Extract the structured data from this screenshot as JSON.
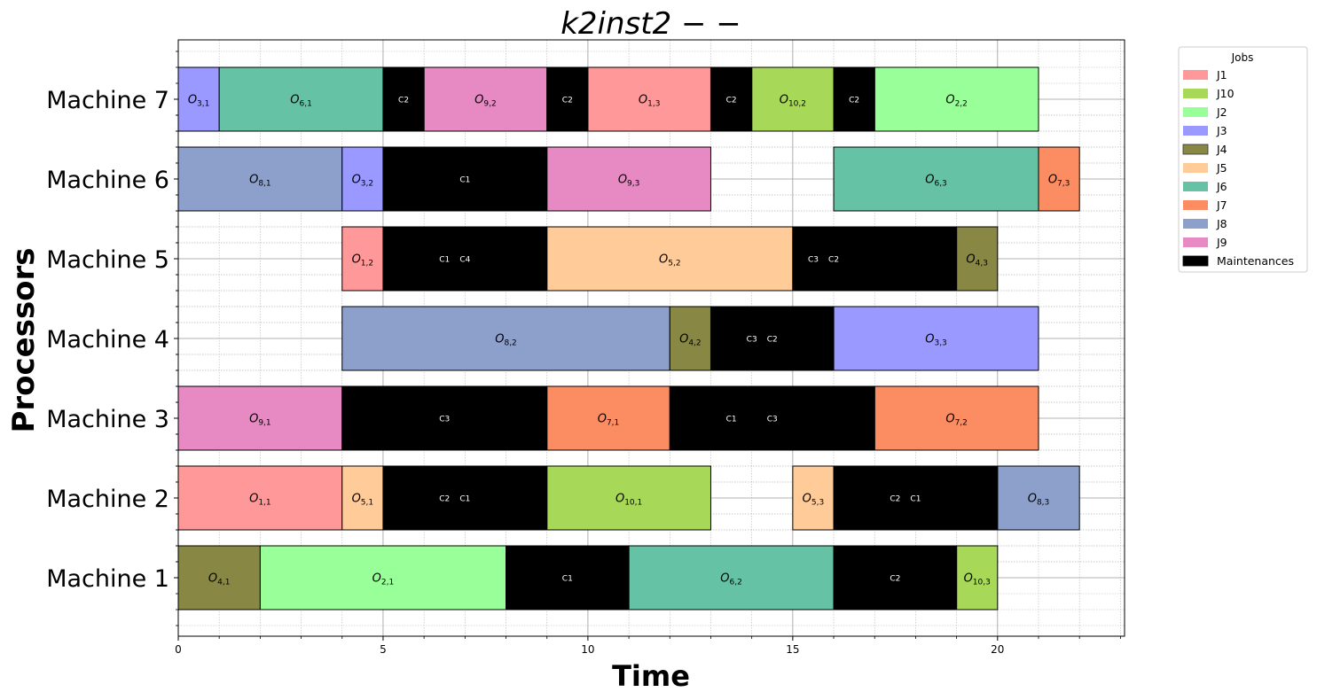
{
  "chart_data": {
    "type": "gantt",
    "title": "k2inst2 − −",
    "xlabel": "Time",
    "ylabel": "Processors",
    "xlim": [
      0,
      23.1
    ],
    "xticks": [
      0,
      5,
      10,
      15,
      20
    ],
    "grid": true,
    "legend_placement": "outside-right-top",
    "legend_title": "Jobs",
    "jobs": [
      {
        "name": "J1",
        "color": "#ff9999"
      },
      {
        "name": "J10",
        "color": "#a8d858"
      },
      {
        "name": "J2",
        "color": "#99ff99"
      },
      {
        "name": "J3",
        "color": "#9999ff"
      },
      {
        "name": "J4",
        "color": "#888844"
      },
      {
        "name": "J5",
        "color": "#ffcc99"
      },
      {
        "name": "J6",
        "color": "#66c2a5"
      },
      {
        "name": "J7",
        "color": "#fc8d62"
      },
      {
        "name": "J8",
        "color": "#8da0cb"
      },
      {
        "name": "J9",
        "color": "#e78ac3"
      },
      {
        "name": "Maintenances",
        "color": "#000000"
      }
    ],
    "machines": [
      "Machine 1",
      "Machine 2",
      "Machine 3",
      "Machine 4",
      "Machine 5",
      "Machine 6",
      "Machine 7"
    ],
    "operations": [
      {
        "machine": 7,
        "job": "J3",
        "op": "3,1",
        "start": 0,
        "end": 1
      },
      {
        "machine": 7,
        "job": "J6",
        "op": "6,1",
        "start": 1,
        "end": 5
      },
      {
        "machine": 7,
        "job": "J9",
        "op": "9,2",
        "start": 6,
        "end": 9
      },
      {
        "machine": 7,
        "job": "J1",
        "op": "1,3",
        "start": 10,
        "end": 13
      },
      {
        "machine": 7,
        "job": "J10",
        "op": "10,2",
        "start": 14,
        "end": 16
      },
      {
        "machine": 7,
        "job": "J2",
        "op": "2,2",
        "start": 17,
        "end": 21
      },
      {
        "machine": 6,
        "job": "J8",
        "op": "8,1",
        "start": 0,
        "end": 4
      },
      {
        "machine": 6,
        "job": "J3",
        "op": "3,2",
        "start": 4,
        "end": 5
      },
      {
        "machine": 6,
        "job": "J9",
        "op": "9,3",
        "start": 9,
        "end": 13
      },
      {
        "machine": 6,
        "job": "J6",
        "op": "6,3",
        "start": 16,
        "end": 21
      },
      {
        "machine": 6,
        "job": "J7",
        "op": "7,3",
        "start": 21,
        "end": 22
      },
      {
        "machine": 5,
        "job": "J1",
        "op": "1,2",
        "start": 4,
        "end": 5
      },
      {
        "machine": 5,
        "job": "J5",
        "op": "5,2",
        "start": 9,
        "end": 15
      },
      {
        "machine": 5,
        "job": "J4",
        "op": "4,3",
        "start": 19,
        "end": 20
      },
      {
        "machine": 4,
        "job": "J8",
        "op": "8,2",
        "start": 4,
        "end": 12
      },
      {
        "machine": 4,
        "job": "J4",
        "op": "4,2",
        "start": 12,
        "end": 13
      },
      {
        "machine": 4,
        "job": "J3",
        "op": "3,3",
        "start": 16,
        "end": 21
      },
      {
        "machine": 3,
        "job": "J9",
        "op": "9,1",
        "start": 0,
        "end": 4
      },
      {
        "machine": 3,
        "job": "J7",
        "op": "7,1",
        "start": 9,
        "end": 12
      },
      {
        "machine": 3,
        "job": "J7",
        "op": "7,2",
        "start": 17,
        "end": 21
      },
      {
        "machine": 2,
        "job": "J1",
        "op": "1,1",
        "start": 0,
        "end": 4
      },
      {
        "machine": 2,
        "job": "J5",
        "op": "5,1",
        "start": 4,
        "end": 5
      },
      {
        "machine": 2,
        "job": "J10",
        "op": "10,1",
        "start": 9,
        "end": 13
      },
      {
        "machine": 2,
        "job": "J5",
        "op": "5,3",
        "start": 15,
        "end": 16
      },
      {
        "machine": 2,
        "job": "J8",
        "op": "8,3",
        "start": 20,
        "end": 22
      },
      {
        "machine": 1,
        "job": "J4",
        "op": "4,1",
        "start": 0,
        "end": 2
      },
      {
        "machine": 1,
        "job": "J2",
        "op": "2,1",
        "start": 2,
        "end": 8
      },
      {
        "machine": 1,
        "job": "J6",
        "op": "6,2",
        "start": 11,
        "end": 16
      },
      {
        "machine": 1,
        "job": "J10",
        "op": "10,3",
        "start": 19,
        "end": 20
      }
    ],
    "maintenances": [
      {
        "machine": 7,
        "start": 5,
        "end": 6,
        "labels": [
          {
            "text": "C2",
            "at": 5.5
          }
        ]
      },
      {
        "machine": 7,
        "start": 9,
        "end": 10,
        "labels": [
          {
            "text": "C2",
            "at": 9.5
          }
        ]
      },
      {
        "machine": 7,
        "start": 13,
        "end": 14,
        "labels": [
          {
            "text": "C2",
            "at": 13.5
          }
        ]
      },
      {
        "machine": 7,
        "start": 16,
        "end": 17,
        "labels": [
          {
            "text": "C2",
            "at": 16.5
          }
        ]
      },
      {
        "machine": 6,
        "start": 5,
        "end": 9,
        "labels": [
          {
            "text": "C1",
            "at": 7
          }
        ]
      },
      {
        "machine": 5,
        "start": 5,
        "end": 9,
        "labels": [
          {
            "text": "C1",
            "at": 6.5
          },
          {
            "text": "C4",
            "at": 7
          }
        ]
      },
      {
        "machine": 5,
        "start": 15,
        "end": 19,
        "labels": [
          {
            "text": "C3",
            "at": 15.5
          },
          {
            "text": "C2",
            "at": 16
          }
        ]
      },
      {
        "machine": 4,
        "start": 13,
        "end": 16,
        "labels": [
          {
            "text": "C3",
            "at": 14
          },
          {
            "text": "C2",
            "at": 14.5
          }
        ]
      },
      {
        "machine": 3,
        "start": 4,
        "end": 9,
        "labels": [
          {
            "text": "C3",
            "at": 6.5
          }
        ]
      },
      {
        "machine": 3,
        "start": 12,
        "end": 17,
        "labels": [
          {
            "text": "C1",
            "at": 13.5
          },
          {
            "text": "C3",
            "at": 14.5
          }
        ]
      },
      {
        "machine": 2,
        "start": 5,
        "end": 9,
        "labels": [
          {
            "text": "C2",
            "at": 6.5
          },
          {
            "text": "C1",
            "at": 7
          }
        ]
      },
      {
        "machine": 2,
        "start": 16,
        "end": 20,
        "labels": [
          {
            "text": "C2",
            "at": 17.5
          },
          {
            "text": "C1",
            "at": 18
          }
        ]
      },
      {
        "machine": 1,
        "start": 8,
        "end": 11,
        "labels": [
          {
            "text": "C1",
            "at": 9.5
          }
        ]
      },
      {
        "machine": 1,
        "start": 16,
        "end": 19,
        "labels": [
          {
            "text": "C2",
            "at": 17.5
          }
        ]
      }
    ]
  }
}
